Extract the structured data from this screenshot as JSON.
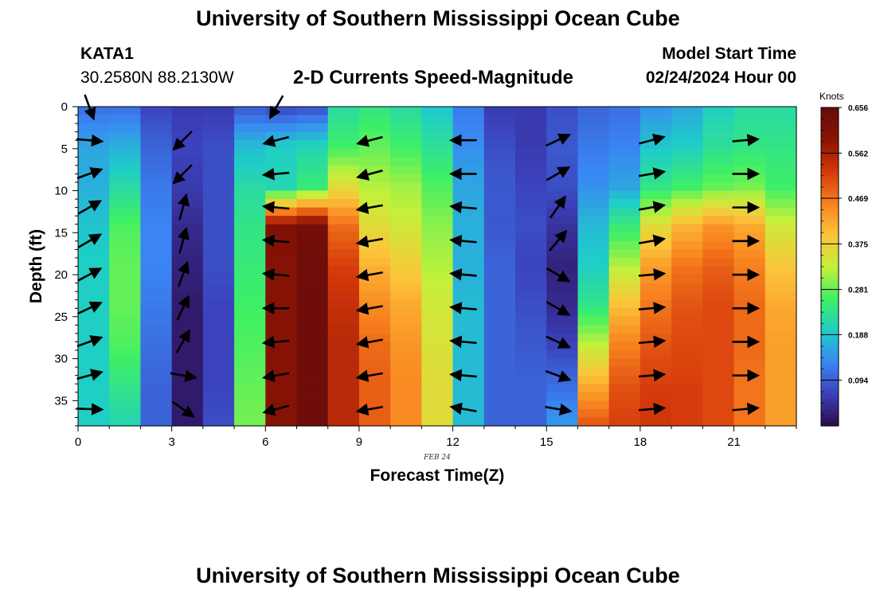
{
  "header": {
    "title": "University of Southern Mississippi Ocean Cube",
    "station": "KATA1",
    "coords": "30.2580N  88.2130W",
    "subtitle": "2-D Currents Speed-Magnitude",
    "start_label": "Model Start Time",
    "start_value": "02/24/2024 Hour 00",
    "footer_title": "University of Southern Mississippi Ocean Cube"
  },
  "chart_data": {
    "type": "heatmap",
    "title": "2-D Currents Speed-Magnitude",
    "xlabel": "Forecast Time(Z)",
    "ylabel": "Depth (ft)",
    "date_label": "FEB 24",
    "xlim": [
      0,
      23
    ],
    "ylim": [
      0,
      38
    ],
    "y_inverted": true,
    "x_ticks": [
      0,
      3,
      6,
      9,
      12,
      15,
      18,
      21
    ],
    "y_ticks": [
      0,
      5,
      10,
      15,
      20,
      25,
      30,
      35
    ],
    "legend_position": "right",
    "colorbar": {
      "label": "Knots",
      "ticks": [
        0.094,
        0.188,
        0.281,
        0.375,
        0.469,
        0.562,
        0.656
      ],
      "range": [
        0,
        0.656
      ],
      "colors": [
        "#2c0a4a",
        "#3b3fb8",
        "#3a86f4",
        "#1ecdc8",
        "#3ff064",
        "#c4f03a",
        "#fcc43a",
        "#f8811f",
        "#d4380a",
        "#8a1404",
        "#650b0b"
      ]
    },
    "columns": [
      {
        "hour": 0,
        "speeds": [
          0.11,
          0.16,
          0.17,
          0.19,
          0.2,
          0.2,
          0.2,
          0.2,
          0.2
        ]
      },
      {
        "hour": 1,
        "speeds": [
          0.11,
          0.17,
          0.22,
          0.27,
          0.28,
          0.28,
          0.27,
          0.24,
          0.21
        ]
      },
      {
        "hour": 2,
        "speeds": [
          0.07,
          0.1,
          0.12,
          0.13,
          0.13,
          0.12,
          0.11,
          0.1,
          0.1
        ]
      },
      {
        "hour": 3,
        "speeds": [
          0.06,
          0.07,
          0.06,
          0.04,
          0.03,
          0.02,
          0.02,
          0.02,
          0.02
        ]
      },
      {
        "hour": 4,
        "speeds": [
          0.06,
          0.08,
          0.08,
          0.08,
          0.08,
          0.07,
          0.07,
          0.07,
          0.08
        ]
      },
      {
        "hour": 5,
        "speeds": [
          0.09,
          0.18,
          0.22,
          0.24,
          0.25,
          0.26,
          0.27,
          0.28,
          0.29
        ]
      },
      {
        "hour": 6,
        "speeds": [
          0.07,
          0.2,
          0.21,
          0.61,
          0.6,
          0.6,
          0.6,
          0.6,
          0.6
        ]
      },
      {
        "hour": 7,
        "speeds": [
          0.08,
          0.21,
          0.25,
          0.63,
          0.64,
          0.64,
          0.64,
          0.64,
          0.64
        ]
      },
      {
        "hour": 8,
        "speeds": [
          0.22,
          0.26,
          0.36,
          0.48,
          0.52,
          0.54,
          0.55,
          0.55,
          0.55
        ]
      },
      {
        "hour": 9,
        "speeds": [
          0.24,
          0.28,
          0.32,
          0.36,
          0.41,
          0.45,
          0.48,
          0.49,
          0.49
        ]
      },
      {
        "hour": 10,
        "speeds": [
          0.22,
          0.26,
          0.31,
          0.34,
          0.38,
          0.42,
          0.44,
          0.45,
          0.45
        ]
      },
      {
        "hour": 11,
        "speeds": [
          0.19,
          0.23,
          0.27,
          0.3,
          0.32,
          0.34,
          0.35,
          0.36,
          0.36
        ]
      },
      {
        "hour": 12,
        "speeds": [
          0.12,
          0.14,
          0.16,
          0.17,
          0.17,
          0.18,
          0.18,
          0.18,
          0.18
        ]
      },
      {
        "hour": 13,
        "speeds": [
          0.06,
          0.08,
          0.09,
          0.09,
          0.1,
          0.1,
          0.1,
          0.1,
          0.1
        ]
      },
      {
        "hour": 14,
        "speeds": [
          0.06,
          0.06,
          0.07,
          0.08,
          0.07,
          0.08,
          0.09,
          0.1,
          0.1
        ]
      },
      {
        "hour": 15,
        "speeds": [
          0.08,
          0.09,
          0.08,
          0.05,
          0.03,
          0.04,
          0.07,
          0.11,
          0.15
        ]
      },
      {
        "hour": 16,
        "speeds": [
          0.1,
          0.12,
          0.14,
          0.18,
          0.2,
          0.24,
          0.33,
          0.42,
          0.5
        ]
      },
      {
        "hour": 17,
        "speeds": [
          0.11,
          0.13,
          0.16,
          0.25,
          0.32,
          0.4,
          0.46,
          0.5,
          0.52
        ]
      },
      {
        "hour": 18,
        "speeds": [
          0.14,
          0.19,
          0.24,
          0.36,
          0.43,
          0.47,
          0.5,
          0.52,
          0.53
        ]
      },
      {
        "hour": 19,
        "speeds": [
          0.16,
          0.2,
          0.26,
          0.41,
          0.47,
          0.5,
          0.51,
          0.52,
          0.52
        ]
      },
      {
        "hour": 20,
        "speeds": [
          0.2,
          0.23,
          0.28,
          0.44,
          0.49,
          0.51,
          0.51,
          0.51,
          0.51
        ]
      },
      {
        "hour": 21,
        "speeds": [
          0.22,
          0.24,
          0.29,
          0.42,
          0.46,
          0.48,
          0.48,
          0.47,
          0.47
        ]
      },
      {
        "hour": 22,
        "speeds": [
          0.22,
          0.24,
          0.26,
          0.34,
          0.39,
          0.42,
          0.43,
          0.43,
          0.43
        ]
      }
    ],
    "vectors": [
      {
        "hour": 0,
        "depths": [
          0,
          4,
          8,
          12,
          16,
          20,
          24,
          28,
          32,
          36
        ],
        "dirs": [
          160,
          95,
          70,
          60,
          60,
          62,
          65,
          70,
          75,
          92
        ]
      },
      {
        "hour": 3,
        "depths": [
          4,
          8,
          12,
          16,
          20,
          24,
          28,
          32,
          36
        ],
        "dirs": [
          225,
          225,
          15,
          15,
          20,
          25,
          30,
          100,
          125
        ]
      },
      {
        "hour": 6,
        "depths": [
          0,
          4,
          8,
          12,
          16,
          20,
          24,
          28,
          32,
          36
        ],
        "dirs": [
          210,
          255,
          265,
          275,
          275,
          275,
          270,
          265,
          260,
          255
        ]
      },
      {
        "hour": 9,
        "depths": [
          4,
          8,
          12,
          16,
          20,
          24,
          28,
          32,
          36
        ],
        "dirs": [
          255,
          255,
          260,
          260,
          260,
          260,
          260,
          260,
          260
        ]
      },
      {
        "hour": 12,
        "depths": [
          4,
          8,
          12,
          16,
          20,
          24,
          28,
          32,
          36
        ],
        "dirs": [
          270,
          270,
          275,
          275,
          275,
          275,
          275,
          275,
          280
        ]
      },
      {
        "hour": 15,
        "depths": [
          4,
          8,
          12,
          16,
          20,
          24,
          28,
          32,
          36
        ],
        "dirs": [
          65,
          60,
          35,
          40,
          120,
          120,
          115,
          110,
          100
        ]
      },
      {
        "hour": 18,
        "depths": [
          4,
          8,
          12,
          16,
          20,
          24,
          28,
          32,
          36
        ],
        "dirs": [
          75,
          80,
          80,
          80,
          85,
          85,
          85,
          85,
          85
        ]
      },
      {
        "hour": 21,
        "depths": [
          4,
          8,
          12,
          16,
          20,
          24,
          28,
          32,
          36
        ],
        "dirs": [
          85,
          90,
          90,
          90,
          90,
          90,
          90,
          90,
          85
        ]
      }
    ]
  }
}
